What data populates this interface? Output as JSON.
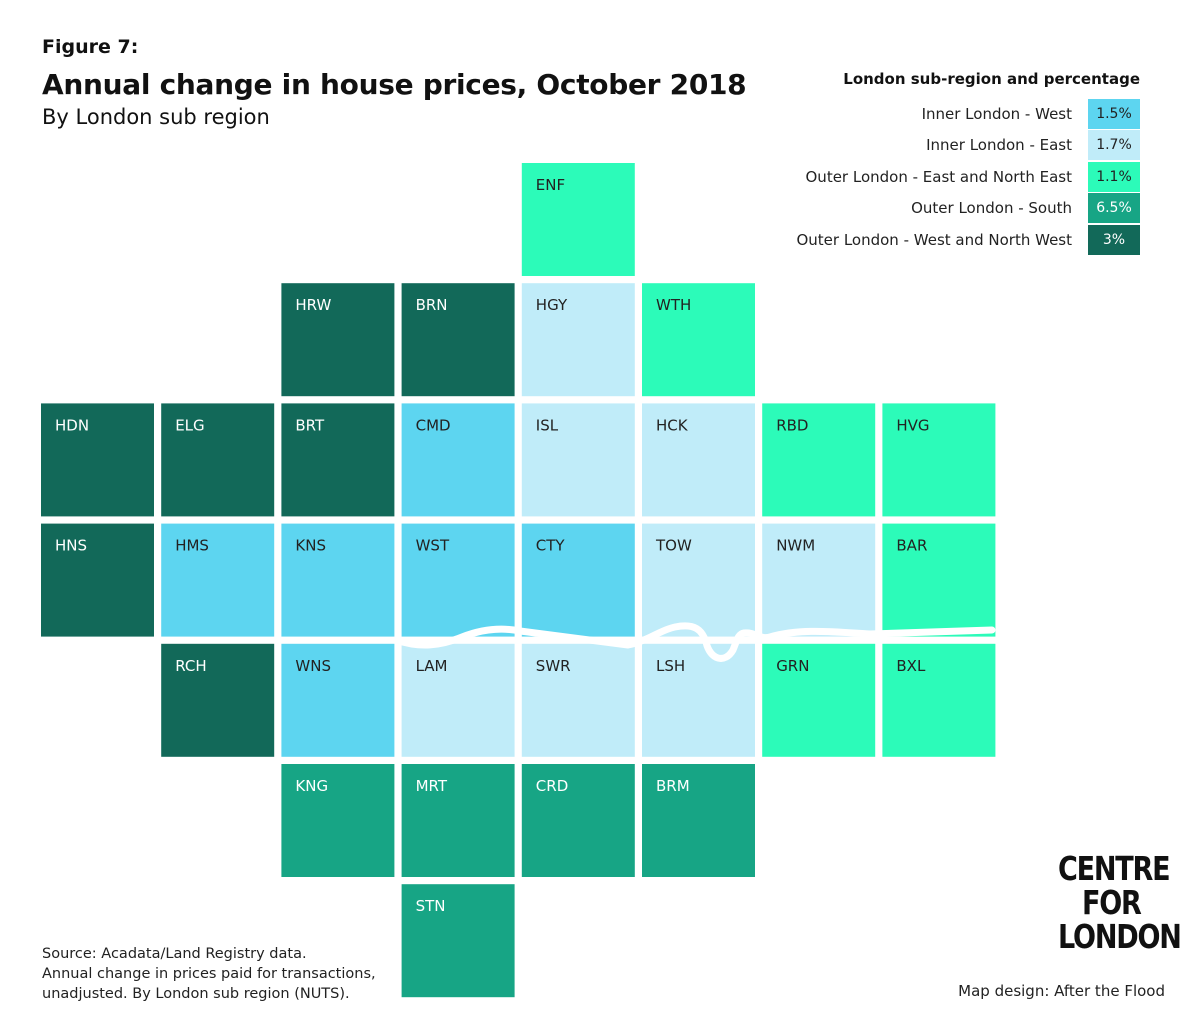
{
  "header": {
    "figure_label": "Figure 7:",
    "title": "Annual change in house prices, October 2018",
    "subtitle": "By London sub region"
  },
  "legend": {
    "title": "London sub-region and percentage",
    "items": [
      {
        "key": "ILW",
        "label": "Inner London - West",
        "value": "1.5%",
        "color": "#5dd5f0",
        "text_color": "#222222"
      },
      {
        "key": "ILE",
        "label": "Inner London - East",
        "value": "1.7%",
        "color": "#c0ecf9",
        "text_color": "#222222"
      },
      {
        "key": "OLE",
        "label": "Outer London - East and North East",
        "value": "1.1%",
        "color": "#2cfbb9",
        "text_color": "#222222"
      },
      {
        "key": "OLS",
        "label": "Outer London - South",
        "value": "6.5%",
        "color": "#17a585",
        "text_color": "#ffffff"
      },
      {
        "key": "OLW",
        "label": "Outer London - West and North West",
        "value": "3%",
        "color": "#126959",
        "text_color": "#ffffff"
      }
    ]
  },
  "boroughs": [
    {
      "code": "ENF",
      "row": 0,
      "col": 4,
      "region": "OLE"
    },
    {
      "code": "HRW",
      "row": 1,
      "col": 2,
      "region": "OLW"
    },
    {
      "code": "BRN",
      "row": 1,
      "col": 3,
      "region": "OLW"
    },
    {
      "code": "HGY",
      "row": 1,
      "col": 4,
      "region": "ILE"
    },
    {
      "code": "WTH",
      "row": 1,
      "col": 5,
      "region": "OLE"
    },
    {
      "code": "HDN",
      "row": 2,
      "col": 0,
      "region": "OLW"
    },
    {
      "code": "ELG",
      "row": 2,
      "col": 1,
      "region": "OLW"
    },
    {
      "code": "BRT",
      "row": 2,
      "col": 2,
      "region": "OLW"
    },
    {
      "code": "CMD",
      "row": 2,
      "col": 3,
      "region": "ILW"
    },
    {
      "code": "ISL",
      "row": 2,
      "col": 4,
      "region": "ILE"
    },
    {
      "code": "HCK",
      "row": 2,
      "col": 5,
      "region": "ILE"
    },
    {
      "code": "RBD",
      "row": 2,
      "col": 6,
      "region": "OLE"
    },
    {
      "code": "HVG",
      "row": 2,
      "col": 7,
      "region": "OLE"
    },
    {
      "code": "HNS",
      "row": 3,
      "col": 0,
      "region": "OLW"
    },
    {
      "code": "HMS",
      "row": 3,
      "col": 1,
      "region": "ILW"
    },
    {
      "code": "KNS",
      "row": 3,
      "col": 2,
      "region": "ILW"
    },
    {
      "code": "WST",
      "row": 3,
      "col": 3,
      "region": "ILW"
    },
    {
      "code": "CTY",
      "row": 3,
      "col": 4,
      "region": "ILW"
    },
    {
      "code": "TOW",
      "row": 3,
      "col": 5,
      "region": "ILE"
    },
    {
      "code": "NWM",
      "row": 3,
      "col": 6,
      "region": "ILE"
    },
    {
      "code": "BAR",
      "row": 3,
      "col": 7,
      "region": "OLE"
    },
    {
      "code": "RCH",
      "row": 4,
      "col": 1,
      "region": "OLW"
    },
    {
      "code": "WNS",
      "row": 4,
      "col": 2,
      "region": "ILW"
    },
    {
      "code": "LAM",
      "row": 4,
      "col": 3,
      "region": "ILE"
    },
    {
      "code": "SWR",
      "row": 4,
      "col": 4,
      "region": "ILE"
    },
    {
      "code": "LSH",
      "row": 4,
      "col": 5,
      "region": "ILE"
    },
    {
      "code": "GRN",
      "row": 4,
      "col": 6,
      "region": "OLE"
    },
    {
      "code": "BXL",
      "row": 4,
      "col": 7,
      "region": "OLE"
    },
    {
      "code": "KNG",
      "row": 5,
      "col": 2,
      "region": "OLS"
    },
    {
      "code": "MRT",
      "row": 5,
      "col": 3,
      "region": "OLS"
    },
    {
      "code": "CRD",
      "row": 5,
      "col": 4,
      "region": "OLS"
    },
    {
      "code": "BRM",
      "row": 5,
      "col": 5,
      "region": "OLS"
    },
    {
      "code": "STN",
      "row": 6,
      "col": 3,
      "region": "OLS"
    }
  ],
  "source": {
    "line1": "Source: Acadata/Land Registry data.",
    "line2": "Annual change in prices paid for transactions,",
    "line3": "unadjusted. By London sub region (NUTS)."
  },
  "logo": {
    "line1": "CENTRE",
    "line2": "FOR",
    "line3": "LONDON"
  },
  "credit": "Map design: After the Flood"
}
